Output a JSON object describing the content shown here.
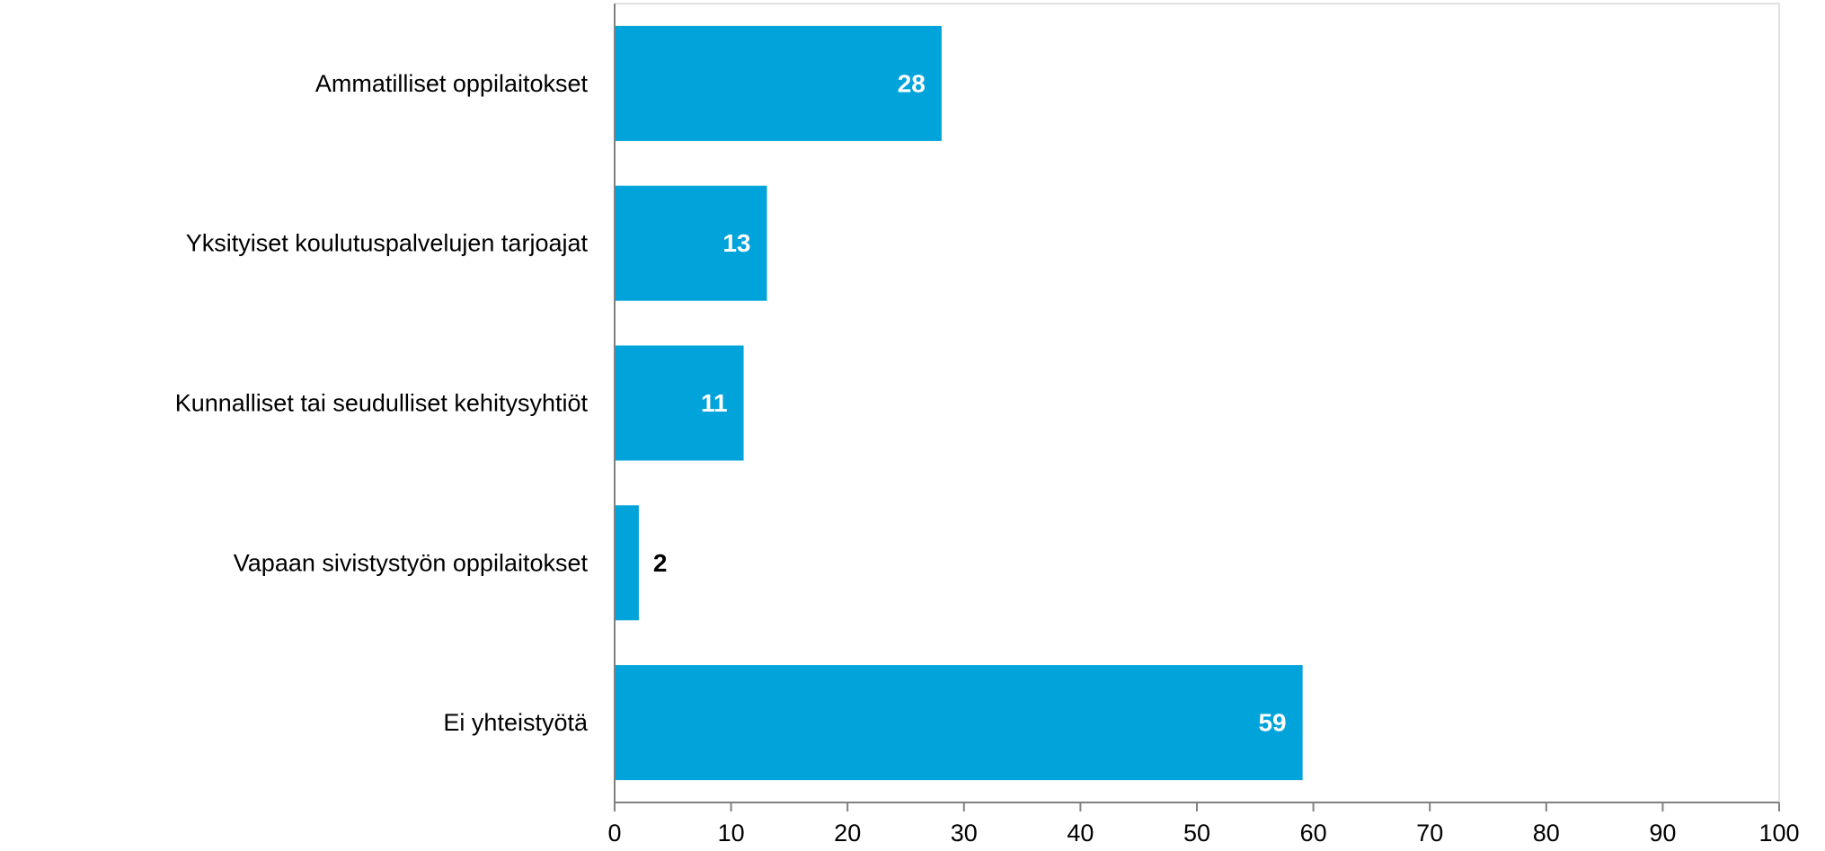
{
  "colors": {
    "bar": "#00A3DA",
    "axis": "#808080",
    "frame": "#D9D9D9",
    "label_inside": "#FFFFFF",
    "label_outside": "#000000"
  },
  "chart_data": {
    "type": "bar",
    "orientation": "horizontal",
    "title": "",
    "xlabel": "",
    "ylabel": "",
    "categories": [
      "Ammatilliset oppilaitokset",
      "Yksityiset koulutuspalvelujen tarjoajat",
      "Kunnalliset tai seudulliset kehitysyhtiöt",
      "Vapaan sivistystyön oppilaitokset",
      "Ei yhteistyötä"
    ],
    "values": [
      28,
      13,
      11,
      2,
      59
    ],
    "xlim": [
      0,
      100
    ],
    "xticks": [
      0,
      10,
      20,
      30,
      40,
      50,
      60,
      70,
      80,
      90,
      100
    ],
    "grid": false,
    "legend": "none"
  }
}
